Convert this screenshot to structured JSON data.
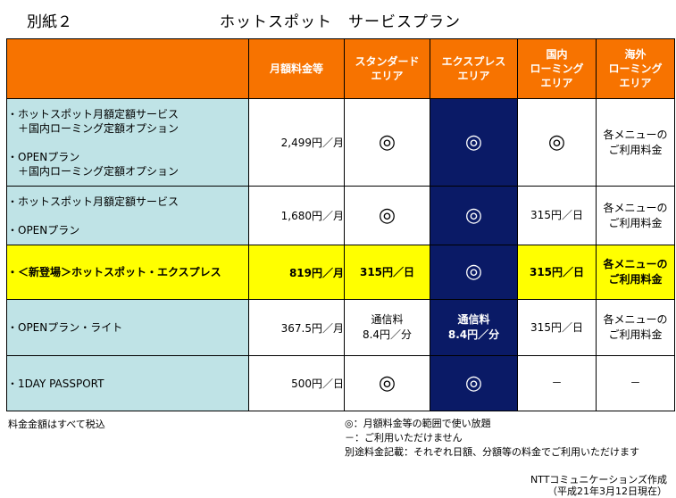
{
  "header": {
    "appendix": "別紙２",
    "title": "ホットスポット　サービスプラン"
  },
  "table": {
    "headers": [
      "",
      "月額料金等",
      "スタンダード\nエリア",
      "エクスプレス\nエリア",
      "国内\nローミング\nエリア",
      "海外\nローミング\nエリア"
    ],
    "rows": [
      {
        "service": [
          "・ホットスポット月額定額サービス",
          "　＋国内ローミング定額オプション",
          "",
          "・OPENプラン",
          "　＋国内ローミング定額オプション"
        ],
        "price": "2,499円／月",
        "standard": "◎",
        "express": "◎",
        "domestic": "◎",
        "overseas": "各メニューの\nご利用料金"
      },
      {
        "service": [
          "・ホットスポット月額定額サービス",
          "",
          "・OPENプラン"
        ],
        "price": "1,680円／月",
        "standard": "◎",
        "express": "◎",
        "domestic": "315円／日",
        "overseas": "各メニューの\nご利用料金"
      },
      {
        "service": [
          "・＜新登場＞ホットスポット・エクスプレス"
        ],
        "price": "819円／月",
        "standard": "315円／日",
        "express": "◎",
        "domestic": "315円／日",
        "overseas": "各メニューの\nご利用料金",
        "highlight": true
      },
      {
        "service": [
          "・OPENプラン・ライト"
        ],
        "price": "367.5円／月",
        "standard": "通信料\n8.4円／分",
        "express": "通信料\n8.4円／分",
        "domestic": "315円／日",
        "overseas": "各メニューの\nご利用料金"
      },
      {
        "service": [
          "・1DAY PASSPORT"
        ],
        "price": "500円／日",
        "standard": "◎",
        "express": "◎",
        "domestic": "－",
        "overseas": "－"
      }
    ]
  },
  "footer": {
    "tax_note": "料金金額はすべて税込",
    "notes": [
      "◎：月額料金等の範囲で使い放題",
      "－：ご利用いただけません",
      "別途料金記載：それぞれ日額、分額等の料金でご利用いただけます"
    ],
    "maker": [
      "NTTコミュニケーションズ作成",
      "（平成21年3月12日現在）"
    ]
  }
}
